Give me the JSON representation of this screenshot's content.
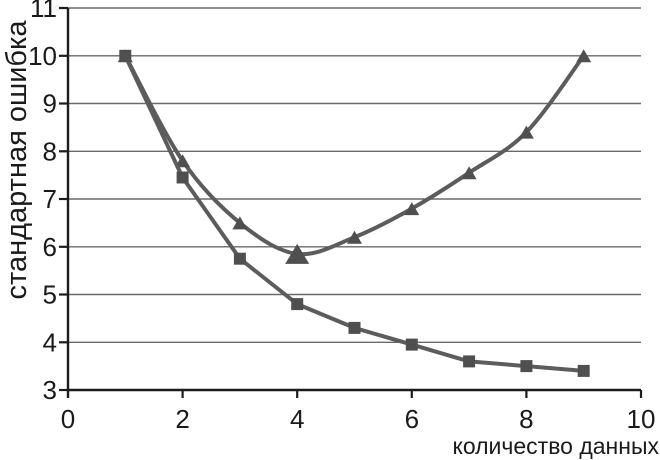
{
  "chart_data": {
    "type": "line",
    "title": "",
    "xlabel": "количество данных",
    "ylabel": "стандартная ошибка",
    "x": [
      1,
      2,
      3,
      4,
      5,
      6,
      7,
      8,
      9
    ],
    "series": [
      {
        "id": "triangle-series",
        "marker": "triangle",
        "smooth": true,
        "values": [
          10,
          7.8,
          6.5,
          5.85,
          6.2,
          6.8,
          7.55,
          8.4,
          10
        ],
        "emphasis_index": 3
      },
      {
        "id": "square-series",
        "marker": "square",
        "smooth": false,
        "values": [
          10,
          7.45,
          5.75,
          4.8,
          4.3,
          3.95,
          3.6,
          3.5,
          3.4
        ]
      }
    ],
    "xlim": [
      0,
      10
    ],
    "ylim": [
      3,
      11
    ],
    "xticks": [
      0,
      2,
      4,
      6,
      8,
      10
    ],
    "yticks": [
      3,
      4,
      5,
      6,
      7,
      8,
      9,
      10,
      11
    ],
    "grid": "horizontal",
    "legend": "none",
    "colors": {
      "line": "#5c5c5c",
      "marker": "#4f4f4f",
      "gridline": "#6a6a6a",
      "axis": "#1c1c1c",
      "text": "#1a1a1a"
    }
  }
}
